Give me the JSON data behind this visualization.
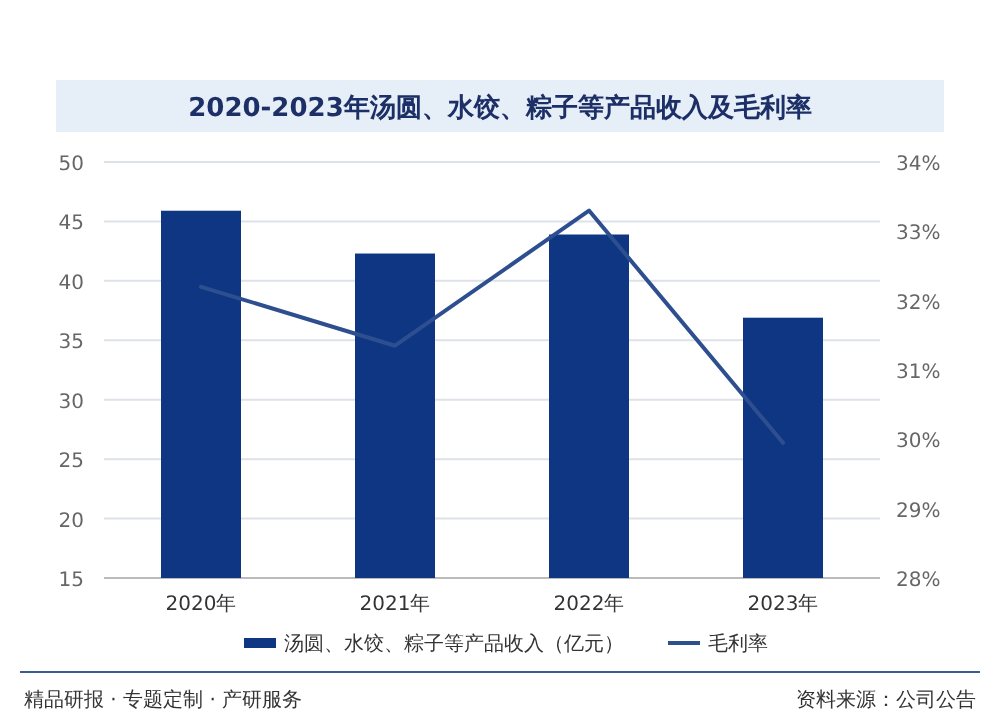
{
  "chart_data": {
    "type": "bar",
    "title": "2020-2023年汤圆、水饺、粽子等产品收入及毛利率",
    "categories": [
      "2020年",
      "2021年",
      "2022年",
      "2023年"
    ],
    "series": [
      {
        "name": "汤圆、水饺、粽子等产品收入（亿元）",
        "color": "#0f3683",
        "values": [
          45.9,
          42.3,
          43.9,
          36.9
        ]
      },
      {
        "name": "毛利率",
        "type": "line",
        "axis": "y2",
        "color": "#2e4f8f",
        "values": [
          32.2,
          31.35,
          33.3,
          29.95
        ]
      }
    ],
    "ylim": [
      15,
      50
    ],
    "yticks": [
      15,
      20,
      25,
      30,
      35,
      40,
      45,
      50
    ],
    "y2lim": [
      28,
      34
    ],
    "y2ticks": [
      {
        "value": 28,
        "label": "28%"
      },
      {
        "value": 29,
        "label": "29%"
      },
      {
        "value": 30,
        "label": "30%"
      },
      {
        "value": 31,
        "label": "31%"
      },
      {
        "value": 32,
        "label": "32%"
      },
      {
        "value": 33,
        "label": "33%"
      },
      {
        "value": 34,
        "label": "34%"
      }
    ],
    "grid": "y",
    "legend": "bottom",
    "marker": "none",
    "annotations": [
      "精品研报 · 专题定制 · 产研服务",
      "资料来源：公司公告"
    ]
  }
}
